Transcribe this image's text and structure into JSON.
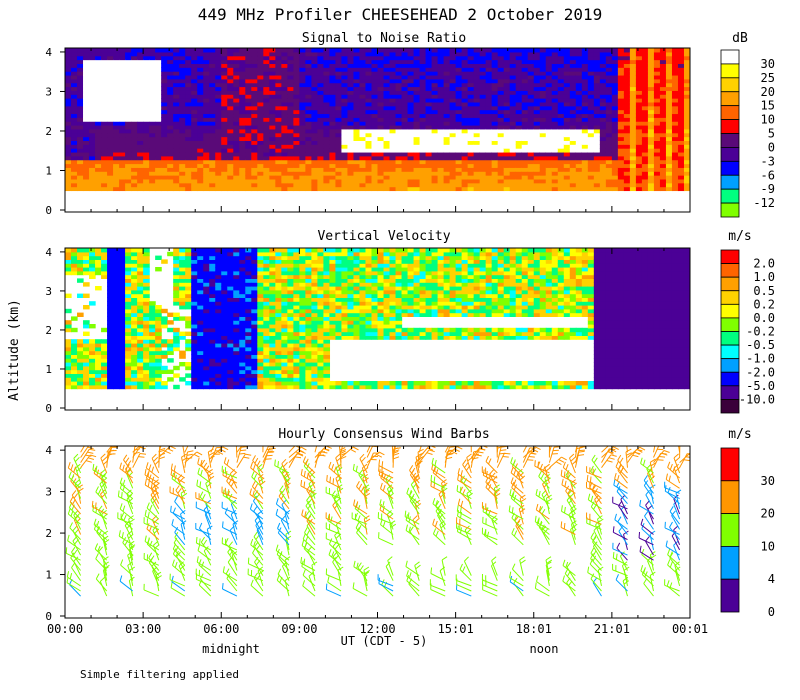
{
  "title": "449 MHz Profiler CHEESEHEAD  2 October 2019",
  "ylabel": "Altitude (km)",
  "xlabel": "UT  (CDT - 5)",
  "local_labels": [
    "midnight",
    "noon"
  ],
  "footnote": "Simple filtering applied",
  "chart_data": [
    {
      "type": "heatmap",
      "title": "Signal to Noise Ratio",
      "unit": "dB",
      "yticks": [
        0,
        1,
        2,
        3,
        4
      ],
      "xticks": [
        "00:00",
        "03:00",
        "06:00",
        "09:00",
        "12:00",
        "15:01",
        "18:01",
        "21:01",
        "00:01"
      ],
      "xlim_hours": [
        0,
        24
      ],
      "ylim_km": [
        0,
        4.1
      ],
      "colorbar": [
        {
          "label": "30",
          "color": "#ffffff"
        },
        {
          "label": "25",
          "color": "#ffff00"
        },
        {
          "label": "20",
          "color": "#ffd200"
        },
        {
          "label": "15",
          "color": "#ffa000"
        },
        {
          "label": "10",
          "color": "#ff6400"
        },
        {
          "label": "5",
          "color": "#ff0000"
        },
        {
          "label": "0",
          "color": "#5a0a78"
        },
        {
          "label": "-3",
          "color": "#4b0096"
        },
        {
          "label": "-6",
          "color": "#0000ff"
        },
        {
          "label": "-9",
          "color": "#00a0ff"
        },
        {
          "label": "-12",
          "color": "#00ff80"
        }
      ],
      "bottom_swatch": "#80ff00"
    },
    {
      "type": "heatmap",
      "title": "Vertical Velocity",
      "unit": "m/s",
      "yticks": [
        0,
        1,
        2,
        3,
        4
      ],
      "xticks": [
        "00:00",
        "03:00",
        "06:00",
        "09:00",
        "12:00",
        "15:01",
        "18:01",
        "21:01",
        "00:01"
      ],
      "xlim_hours": [
        0,
        24
      ],
      "ylim_km": [
        0,
        4.1
      ],
      "colorbar": [
        {
          "label": "2.0",
          "color": "#ff0000"
        },
        {
          "label": "1.0",
          "color": "#ff6400"
        },
        {
          "label": "0.5",
          "color": "#ffa000"
        },
        {
          "label": "0.2",
          "color": "#ffd200"
        },
        {
          "label": "0.0",
          "color": "#ffff00"
        },
        {
          "label": "-0.2",
          "color": "#80ff00"
        },
        {
          "label": "-0.5",
          "color": "#00ff80"
        },
        {
          "label": "-1.0",
          "color": "#00ffff"
        },
        {
          "label": "-2.0",
          "color": "#00a0ff"
        },
        {
          "label": "-5.0",
          "color": "#0000ff"
        },
        {
          "label": "-10.0",
          "color": "#4b0096"
        }
      ],
      "bottom_swatch": "#3a003a"
    },
    {
      "type": "scatter",
      "title": "Hourly Consensus Wind Barbs",
      "unit": "m/s",
      "yticks": [
        0,
        1,
        2,
        3,
        4
      ],
      "xticks": [
        "00:00",
        "03:00",
        "06:00",
        "09:00",
        "12:00",
        "15:01",
        "18:01",
        "21:01",
        "00:01"
      ],
      "xlim_hours": [
        0,
        24
      ],
      "ylim_km": [
        0,
        4.1
      ],
      "colorbar": [
        {
          "label": "30",
          "color": "#ff0000"
        },
        {
          "label": "20",
          "color": "#ff9600"
        },
        {
          "label": "10",
          "color": "#80ff00"
        },
        {
          "label": "4",
          "color": "#00a0ff"
        },
        {
          "label": "0",
          "color": "#4b0096"
        }
      ]
    }
  ]
}
